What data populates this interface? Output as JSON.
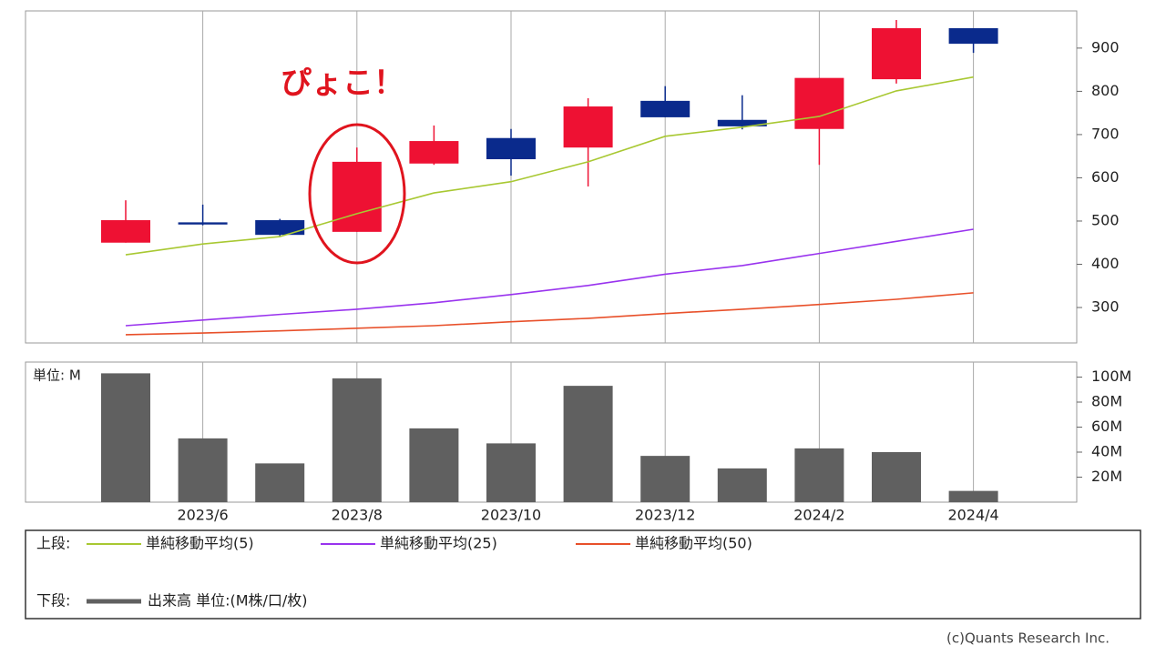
{
  "chart_data": [
    {
      "type": "candlestick",
      "categories": [
        null,
        "2023/6",
        null,
        "2023/8",
        null,
        "2023/10",
        null,
        "2023/12",
        null,
        "2024/2",
        null,
        "2024/4"
      ],
      "open": [
        450,
        497,
        502,
        475,
        633,
        692,
        670,
        778,
        734,
        713,
        828,
        946
      ],
      "high": [
        548,
        538,
        505,
        670,
        721,
        713,
        784,
        812,
        791,
        831,
        965,
        946
      ],
      "low": [
        450,
        490,
        465,
        475,
        630,
        605,
        580,
        740,
        712,
        630,
        818,
        889
      ],
      "close": [
        502,
        492,
        468,
        637,
        685,
        643,
        765,
        740,
        719,
        831,
        946,
        910
      ],
      "up_color": "#ee1133",
      "down_color": "#0a2a8c",
      "series": [
        {
          "name": "単純移動平均(5)",
          "color": "#a8c832",
          "values": [
            422,
            447,
            464,
            517,
            565,
            591,
            637,
            696,
            717,
            742,
            801,
            833
          ]
        },
        {
          "name": "単純移動平均(25)",
          "color": "#9933ee",
          "values": [
            258,
            271,
            284,
            296,
            311,
            330,
            351,
            377,
            397,
            425,
            453,
            481
          ]
        },
        {
          "name": "単純移動平均(50)",
          "color": "#e8502a",
          "values": [
            237,
            241,
            246,
            252,
            258,
            267,
            275,
            286,
            296,
            307,
            319,
            334
          ]
        }
      ],
      "ylim": [
        218,
        986
      ],
      "yticks": [
        300,
        400,
        500,
        600,
        700,
        800,
        900
      ],
      "grid": false,
      "xgrid": true,
      "annotation": "ぴょこ！",
      "legend_label": "上段:"
    },
    {
      "type": "bar",
      "name": "出来高 単位:(M株/口/枚)",
      "color": "#606060",
      "values": [
        103,
        51,
        31,
        99,
        59,
        47,
        93,
        37,
        27,
        43,
        40,
        9
      ],
      "unit_label": "単位: M",
      "ylim": [
        0,
        112
      ],
      "yticks": [
        {
          "value": 20,
          "label": "20M"
        },
        {
          "value": 40,
          "label": "40M"
        },
        {
          "value": 60,
          "label": "60M"
        },
        {
          "value": 80,
          "label": "80M"
        },
        {
          "value": 100,
          "label": "100M"
        }
      ],
      "legend_label": "下段:"
    }
  ],
  "credit": "(c)Quants Research Inc."
}
